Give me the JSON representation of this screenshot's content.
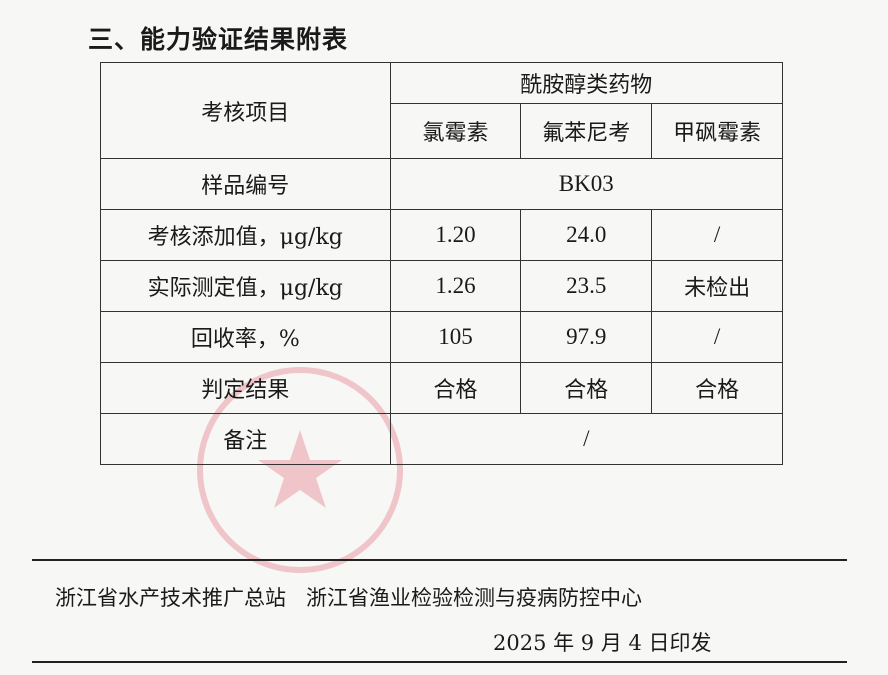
{
  "section_title": "三、能力验证结果附表",
  "table": {
    "header_item": "考核项目",
    "header_group": "酰胺醇类药物",
    "drugs": [
      "氯霉素",
      "氟苯尼考",
      "甲砜霉素"
    ],
    "sample_label": "样品编号",
    "sample_value": "BK03",
    "rows": [
      {
        "label": "考核添加值，μg/kg",
        "values": [
          "1.20",
          "24.0",
          "/"
        ]
      },
      {
        "label": "实际测定值，μg/kg",
        "values": [
          "1.26",
          "23.5",
          "未检出"
        ]
      },
      {
        "label": "回收率，%",
        "values": [
          "105",
          "97.9",
          "/"
        ]
      },
      {
        "label": "判定结果",
        "values": [
          "合格",
          "合格",
          "合格"
        ]
      }
    ],
    "remark_label": "备注",
    "remark_value": "/"
  },
  "footer": {
    "org1": "浙江省水产技术推广总站",
    "org2": "浙江省渔业检验检测与疫病防控中心",
    "date": "2025 年 9 月 4 日印发"
  },
  "colors": {
    "stamp": "#d9334a"
  }
}
